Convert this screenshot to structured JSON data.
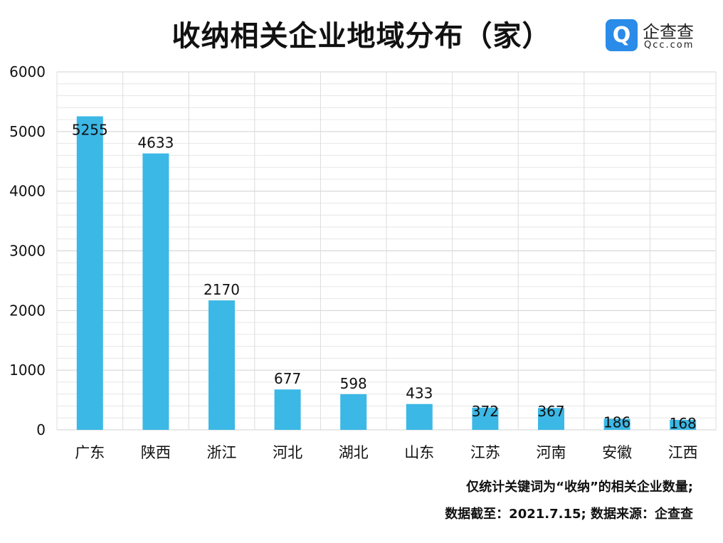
{
  "chart_data": {
    "type": "bar",
    "title": "收纳相关企业地域分布（家）",
    "categories": [
      "广东",
      "陕西",
      "浙江",
      "河北",
      "湖北",
      "山东",
      "江苏",
      "河南",
      "安徽",
      "江西"
    ],
    "values": [
      5255,
      4633,
      2170,
      677,
      598,
      433,
      372,
      367,
      186,
      168
    ],
    "yticks": [
      "0",
      "1000",
      "2000",
      "3000",
      "4000",
      "5000",
      "6000"
    ],
    "ylim": [
      0,
      6000
    ],
    "grid": true,
    "bar_color": "#3bb8e6",
    "notes": [
      "仅统计关键词为“收纳”的相关企业数量;",
      "数据截至：2021.7.15; 数据来源：企查查"
    ]
  },
  "logo": {
    "icon": "qcc-logo-icon",
    "cn": "企查查",
    "en": "Qcc.com",
    "color": "#2a8be8"
  }
}
